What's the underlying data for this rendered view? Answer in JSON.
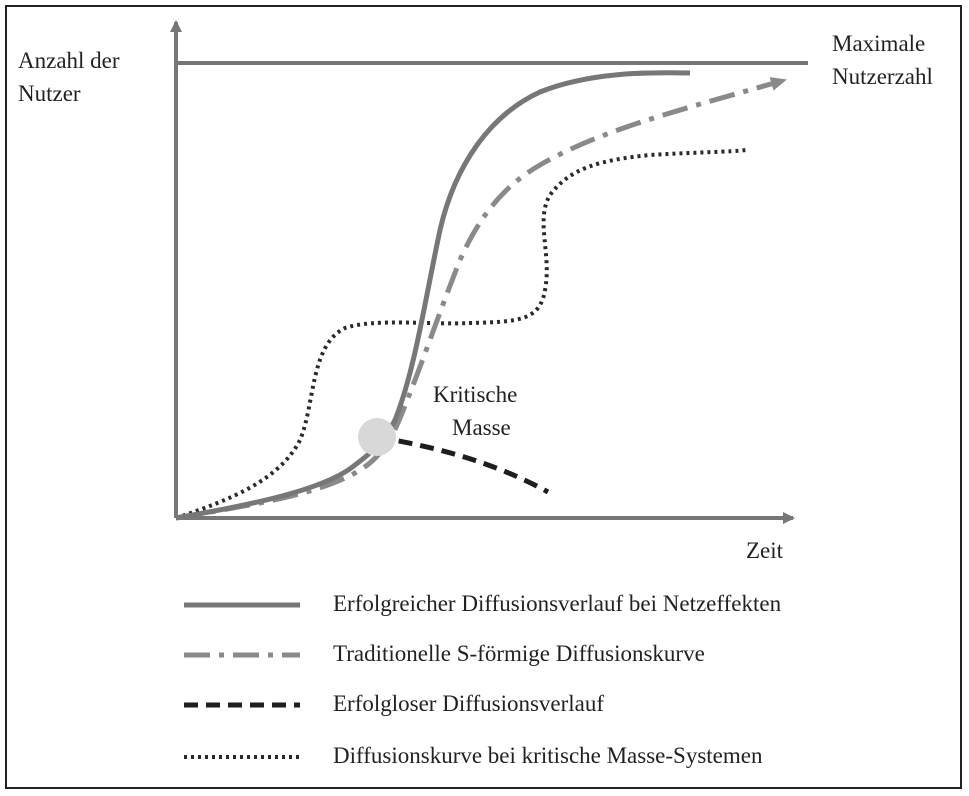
{
  "axis": {
    "y_label_line1": "Anzahl der",
    "y_label_line2": "Nutzer",
    "x_label": "Zeit"
  },
  "max_line": {
    "label_line1": "Maximale",
    "label_line2": "Nutzerzahl"
  },
  "critical_mass": {
    "label_line1": "Kritische",
    "label_line2": "Masse"
  },
  "legend": [
    {
      "key": "success",
      "label": "Erfolgreicher Diffusionsverlauf bei Netzeffekten"
    },
    {
      "key": "traditional",
      "label": "Traditionelle S-förmige Diffusionskurve"
    },
    {
      "key": "failure",
      "label": "Erfolgloser Diffusionsverlauf"
    },
    {
      "key": "critical",
      "label": "Diffusionskurve bei kritische Masse-Systemen"
    }
  ],
  "colors": {
    "frame": "#222222",
    "axis": "#777777",
    "success": "#777777",
    "traditional": "#8a8a8a",
    "failure": "#1e1e1e",
    "critical": "#2a2a2a",
    "critical_point": "#d8d8d8"
  }
}
